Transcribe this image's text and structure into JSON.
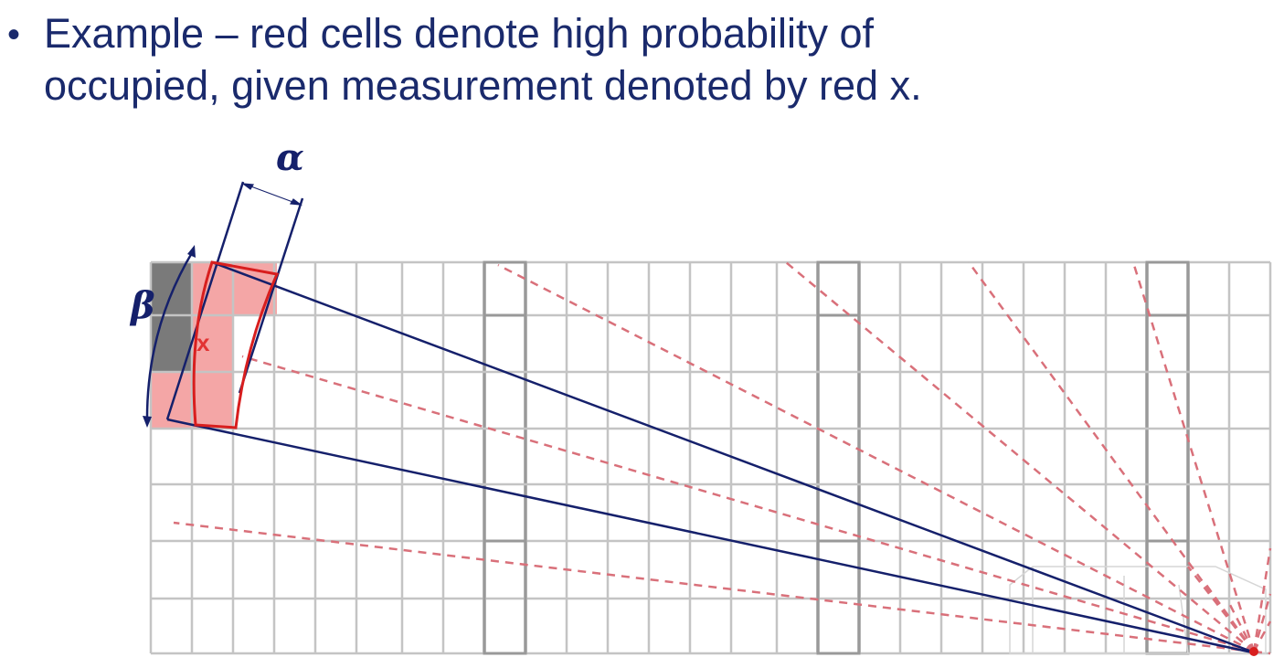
{
  "caption": {
    "bullet": "•",
    "line1": "Example – red cells denote high probability of",
    "line2": "occupied, given measurement denoted by red x."
  },
  "diagram": {
    "alpha_label": "α",
    "beta_label": "β",
    "measurement_label": "x",
    "colors": {
      "grid": "#c4c4c4",
      "grid_thick": "#999999",
      "occupied": "#f4a6a6",
      "occupied_dark": "#7a7a7a",
      "beam": "#15206b",
      "arc": "#d81e1e",
      "ray": "#d9707a",
      "label": "#15206b",
      "x_mark": "#e23333"
    }
  }
}
